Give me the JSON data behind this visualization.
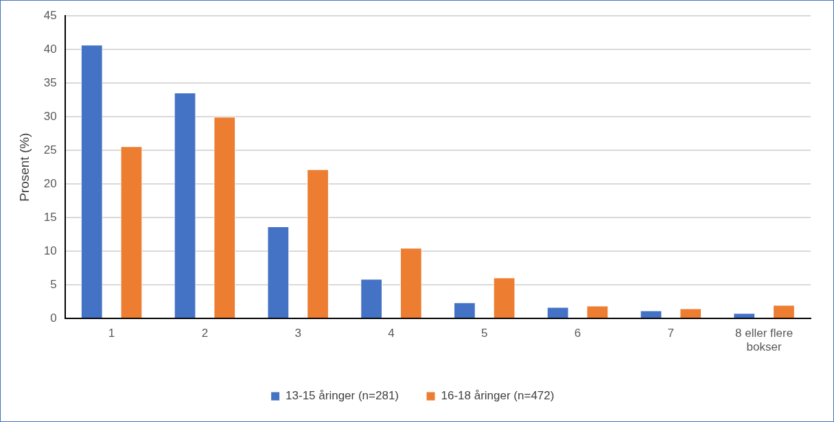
{
  "chart_data": {
    "type": "bar",
    "ylabel": "Prosent (%)",
    "categories": [
      "1",
      "2",
      "3",
      "4",
      "5",
      "6",
      "7",
      "8 eller flere bokser"
    ],
    "series": [
      {
        "name": "13-15 åringer (n=281)",
        "color": "#4472c4",
        "values": [
          40.7,
          33.6,
          13.7,
          5.9,
          2.4,
          1.7,
          1.2,
          0.8
        ]
      },
      {
        "name": "16-18 åringer (n=472)",
        "color": "#ed7d31",
        "values": [
          25.6,
          30.0,
          22.2,
          10.5,
          6.1,
          1.9,
          1.5,
          2.0
        ]
      }
    ],
    "ylim": [
      0,
      45
    ],
    "yticks": [
      0,
      5,
      10,
      15,
      20,
      25,
      30,
      35,
      40,
      45
    ],
    "grid": "y",
    "legend": "bottom"
  }
}
